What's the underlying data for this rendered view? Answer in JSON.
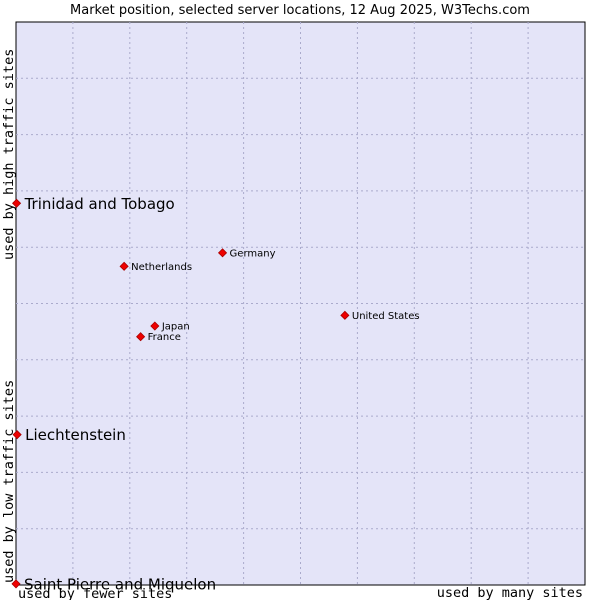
{
  "chart_data": {
    "type": "scatter",
    "title": "Market position, selected server locations, 12 Aug 2025, W3Techs.com",
    "x_axis": {
      "label_low": "used by fewer sites",
      "label_high": "used by many sites"
    },
    "y_axis": {
      "label_low": "used by low traffic sites",
      "label_high": "used by high traffic sites"
    },
    "xlim": [
      0,
      100
    ],
    "ylim": [
      0,
      100
    ],
    "grid": true,
    "points": [
      {
        "label": "United States",
        "x": 57.8,
        "y": 47.9,
        "emphasis": false
      },
      {
        "label": "Germany",
        "x": 36.3,
        "y": 59.0,
        "emphasis": false
      },
      {
        "label": "Netherlands",
        "x": 19.0,
        "y": 56.6,
        "emphasis": false
      },
      {
        "label": "Japan",
        "x": 24.4,
        "y": 46.0,
        "emphasis": false
      },
      {
        "label": "France",
        "x": 21.9,
        "y": 44.1,
        "emphasis": false
      },
      {
        "label": "Trinidad and Tobago",
        "x": 0.1,
        "y": 67.8,
        "emphasis": true
      },
      {
        "label": "Liechtenstein",
        "x": 0.2,
        "y": 26.7,
        "emphasis": true
      },
      {
        "label": "Saint Pierre and Miquelon",
        "x": 0.0,
        "y": 0.2,
        "emphasis": true
      }
    ],
    "colors": {
      "plot_bg": "#e4e4f8",
      "grid": "#aaaacc",
      "point": "#ee0000",
      "point_stroke": "#aa0000"
    }
  }
}
